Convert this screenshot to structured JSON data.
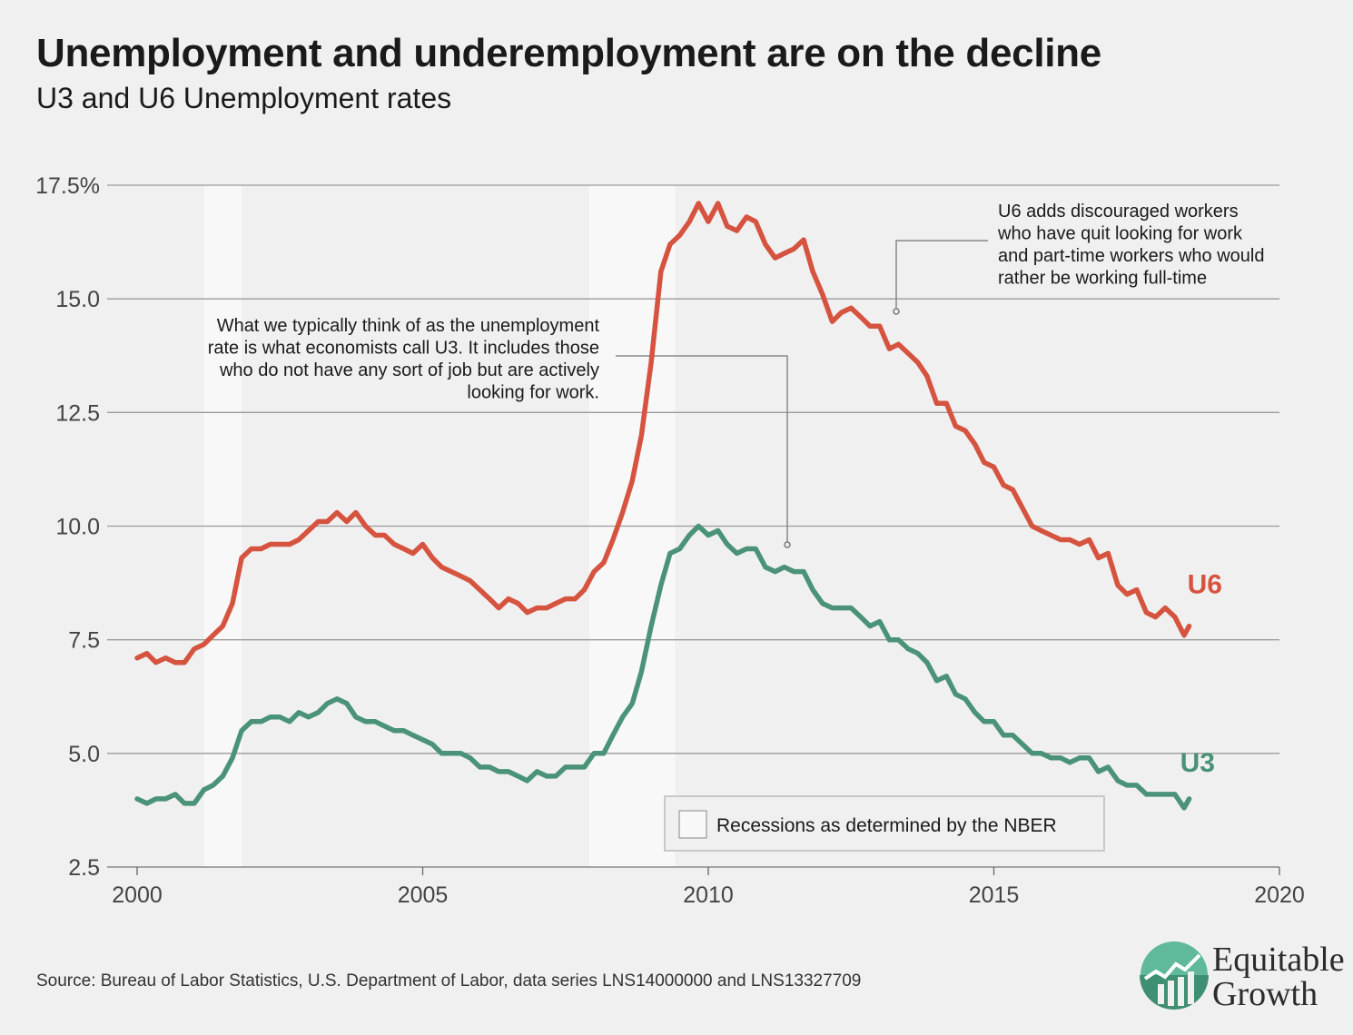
{
  "header": {
    "title": "Unemployment and underemployment are on the decline",
    "subtitle": "U3 and U6 Unemployment rates"
  },
  "footer": {
    "source": "Source: Bureau of Labor Statistics, U.S. Department of Labor, data series LNS14000000 and LNS13327709"
  },
  "logo": {
    "line1": "Equitable",
    "line2": "Growth",
    "icon": "growth-chart-icon"
  },
  "annotations": {
    "u3_note": [
      "What we typically think of as the unemployment",
      "rate is what economists call U3. It includes those",
      "who do not have any sort of job but are actively",
      "looking for work."
    ],
    "u6_note": [
      "U6 adds discouraged workers",
      "who have quit looking for work",
      "and part-time workers who would",
      "rather be working full-time"
    ]
  },
  "legend": {
    "recession_label": "Recessions as determined by the NBER"
  },
  "colors": {
    "u6": "#d5533f",
    "u3": "#4a9378",
    "recession": "#f8f8f8",
    "grid": "#9a9a9a"
  },
  "chart_data": {
    "type": "line",
    "title": "Unemployment and underemployment are on the decline",
    "subtitle": "U3 and U6 Unemployment rates",
    "xlabel": "",
    "ylabel": "",
    "xlim": [
      2000,
      2020
    ],
    "ylim": [
      2.5,
      17.5
    ],
    "x_ticks": [
      "2000",
      "2005",
      "2010",
      "2015",
      "2020"
    ],
    "y_ticks": [
      "17.5%",
      "15.0",
      "12.5",
      "10.0",
      "7.5",
      "5.0",
      "2.5"
    ],
    "y_tick_values": [
      17.5,
      15,
      12.5,
      10,
      7.5,
      5,
      2.5
    ],
    "grid": true,
    "recessions": [
      [
        2001.17,
        2001.83
      ],
      [
        2007.92,
        2009.42
      ]
    ],
    "series": [
      {
        "name": "U6",
        "points": [
          [
            2000.0,
            7.1
          ],
          [
            2000.17,
            7.2
          ],
          [
            2000.33,
            7.0
          ],
          [
            2000.5,
            7.1
          ],
          [
            2000.67,
            7.0
          ],
          [
            2000.83,
            7.0
          ],
          [
            2001.0,
            7.3
          ],
          [
            2001.17,
            7.4
          ],
          [
            2001.33,
            7.6
          ],
          [
            2001.5,
            7.8
          ],
          [
            2001.67,
            8.3
          ],
          [
            2001.83,
            9.3
          ],
          [
            2002.0,
            9.5
          ],
          [
            2002.17,
            9.5
          ],
          [
            2002.33,
            9.6
          ],
          [
            2002.5,
            9.6
          ],
          [
            2002.67,
            9.6
          ],
          [
            2002.83,
            9.7
          ],
          [
            2003.0,
            9.9
          ],
          [
            2003.17,
            10.1
          ],
          [
            2003.33,
            10.1
          ],
          [
            2003.5,
            10.3
          ],
          [
            2003.67,
            10.1
          ],
          [
            2003.83,
            10.3
          ],
          [
            2004.0,
            10.0
          ],
          [
            2004.17,
            9.8
          ],
          [
            2004.33,
            9.8
          ],
          [
            2004.5,
            9.6
          ],
          [
            2004.67,
            9.5
          ],
          [
            2004.83,
            9.4
          ],
          [
            2005.0,
            9.6
          ],
          [
            2005.17,
            9.3
          ],
          [
            2005.33,
            9.1
          ],
          [
            2005.5,
            9.0
          ],
          [
            2005.67,
            8.9
          ],
          [
            2005.83,
            8.8
          ],
          [
            2006.0,
            8.6
          ],
          [
            2006.17,
            8.4
          ],
          [
            2006.33,
            8.2
          ],
          [
            2006.5,
            8.4
          ],
          [
            2006.67,
            8.3
          ],
          [
            2006.83,
            8.1
          ],
          [
            2007.0,
            8.2
          ],
          [
            2007.17,
            8.2
          ],
          [
            2007.33,
            8.3
          ],
          [
            2007.5,
            8.4
          ],
          [
            2007.67,
            8.4
          ],
          [
            2007.83,
            8.6
          ],
          [
            2008.0,
            9.0
          ],
          [
            2008.17,
            9.2
          ],
          [
            2008.33,
            9.7
          ],
          [
            2008.5,
            10.3
          ],
          [
            2008.67,
            11.0
          ],
          [
            2008.83,
            12.0
          ],
          [
            2009.0,
            13.6
          ],
          [
            2009.17,
            15.6
          ],
          [
            2009.33,
            16.2
          ],
          [
            2009.5,
            16.4
          ],
          [
            2009.67,
            16.7
          ],
          [
            2009.83,
            17.1
          ],
          [
            2010.0,
            16.7
          ],
          [
            2010.17,
            17.1
          ],
          [
            2010.33,
            16.6
          ],
          [
            2010.5,
            16.5
          ],
          [
            2010.67,
            16.8
          ],
          [
            2010.83,
            16.7
          ],
          [
            2011.0,
            16.2
          ],
          [
            2011.17,
            15.9
          ],
          [
            2011.33,
            16.0
          ],
          [
            2011.5,
            16.1
          ],
          [
            2011.67,
            16.3
          ],
          [
            2011.83,
            15.6
          ],
          [
            2012.0,
            15.1
          ],
          [
            2012.17,
            14.5
          ],
          [
            2012.33,
            14.7
          ],
          [
            2012.5,
            14.8
          ],
          [
            2012.67,
            14.6
          ],
          [
            2012.83,
            14.4
          ],
          [
            2013.0,
            14.4
          ],
          [
            2013.17,
            13.9
          ],
          [
            2013.33,
            14.0
          ],
          [
            2013.5,
            13.8
          ],
          [
            2013.67,
            13.6
          ],
          [
            2013.83,
            13.3
          ],
          [
            2014.0,
            12.7
          ],
          [
            2014.17,
            12.7
          ],
          [
            2014.33,
            12.2
          ],
          [
            2014.5,
            12.1
          ],
          [
            2014.67,
            11.8
          ],
          [
            2014.83,
            11.4
          ],
          [
            2015.0,
            11.3
          ],
          [
            2015.17,
            10.9
          ],
          [
            2015.33,
            10.8
          ],
          [
            2015.5,
            10.4
          ],
          [
            2015.67,
            10.0
          ],
          [
            2015.83,
            9.9
          ],
          [
            2016.0,
            9.8
          ],
          [
            2016.17,
            9.7
          ],
          [
            2016.33,
            9.7
          ],
          [
            2016.5,
            9.6
          ],
          [
            2016.67,
            9.7
          ],
          [
            2016.83,
            9.3
          ],
          [
            2017.0,
            9.4
          ],
          [
            2017.17,
            8.7
          ],
          [
            2017.33,
            8.5
          ],
          [
            2017.5,
            8.6
          ],
          [
            2017.67,
            8.1
          ],
          [
            2017.83,
            8.0
          ],
          [
            2018.0,
            8.2
          ],
          [
            2018.17,
            8.0
          ],
          [
            2018.33,
            7.6
          ],
          [
            2018.42,
            7.8
          ]
        ]
      },
      {
        "name": "U3",
        "points": [
          [
            2000.0,
            4.0
          ],
          [
            2000.17,
            3.9
          ],
          [
            2000.33,
            4.0
          ],
          [
            2000.5,
            4.0
          ],
          [
            2000.67,
            4.1
          ],
          [
            2000.83,
            3.9
          ],
          [
            2001.0,
            3.9
          ],
          [
            2001.17,
            4.2
          ],
          [
            2001.33,
            4.3
          ],
          [
            2001.5,
            4.5
          ],
          [
            2001.67,
            4.9
          ],
          [
            2001.83,
            5.5
          ],
          [
            2002.0,
            5.7
          ],
          [
            2002.17,
            5.7
          ],
          [
            2002.33,
            5.8
          ],
          [
            2002.5,
            5.8
          ],
          [
            2002.67,
            5.7
          ],
          [
            2002.83,
            5.9
          ],
          [
            2003.0,
            5.8
          ],
          [
            2003.17,
            5.9
          ],
          [
            2003.33,
            6.1
          ],
          [
            2003.5,
            6.2
          ],
          [
            2003.67,
            6.1
          ],
          [
            2003.83,
            5.8
          ],
          [
            2004.0,
            5.7
          ],
          [
            2004.17,
            5.7
          ],
          [
            2004.33,
            5.6
          ],
          [
            2004.5,
            5.5
          ],
          [
            2004.67,
            5.5
          ],
          [
            2004.83,
            5.4
          ],
          [
            2005.0,
            5.3
          ],
          [
            2005.17,
            5.2
          ],
          [
            2005.33,
            5.0
          ],
          [
            2005.5,
            5.0
          ],
          [
            2005.67,
            5.0
          ],
          [
            2005.83,
            4.9
          ],
          [
            2006.0,
            4.7
          ],
          [
            2006.17,
            4.7
          ],
          [
            2006.33,
            4.6
          ],
          [
            2006.5,
            4.6
          ],
          [
            2006.67,
            4.5
          ],
          [
            2006.83,
            4.4
          ],
          [
            2007.0,
            4.6
          ],
          [
            2007.17,
            4.5
          ],
          [
            2007.33,
            4.5
          ],
          [
            2007.5,
            4.7
          ],
          [
            2007.67,
            4.7
          ],
          [
            2007.83,
            4.7
          ],
          [
            2008.0,
            5.0
          ],
          [
            2008.17,
            5.0
          ],
          [
            2008.33,
            5.4
          ],
          [
            2008.5,
            5.8
          ],
          [
            2008.67,
            6.1
          ],
          [
            2008.83,
            6.8
          ],
          [
            2009.0,
            7.8
          ],
          [
            2009.17,
            8.7
          ],
          [
            2009.33,
            9.4
          ],
          [
            2009.5,
            9.5
          ],
          [
            2009.67,
            9.8
          ],
          [
            2009.83,
            10.0
          ],
          [
            2010.0,
            9.8
          ],
          [
            2010.17,
            9.9
          ],
          [
            2010.33,
            9.6
          ],
          [
            2010.5,
            9.4
          ],
          [
            2010.67,
            9.5
          ],
          [
            2010.83,
            9.5
          ],
          [
            2011.0,
            9.1
          ],
          [
            2011.17,
            9.0
          ],
          [
            2011.33,
            9.1
          ],
          [
            2011.5,
            9.0
          ],
          [
            2011.67,
            9.0
          ],
          [
            2011.83,
            8.6
          ],
          [
            2012.0,
            8.3
          ],
          [
            2012.17,
            8.2
          ],
          [
            2012.33,
            8.2
          ],
          [
            2012.5,
            8.2
          ],
          [
            2012.67,
            8.0
          ],
          [
            2012.83,
            7.8
          ],
          [
            2013.0,
            7.9
          ],
          [
            2013.17,
            7.5
          ],
          [
            2013.33,
            7.5
          ],
          [
            2013.5,
            7.3
          ],
          [
            2013.67,
            7.2
          ],
          [
            2013.83,
            7.0
          ],
          [
            2014.0,
            6.6
          ],
          [
            2014.17,
            6.7
          ],
          [
            2014.33,
            6.3
          ],
          [
            2014.5,
            6.2
          ],
          [
            2014.67,
            5.9
          ],
          [
            2014.83,
            5.7
          ],
          [
            2015.0,
            5.7
          ],
          [
            2015.17,
            5.4
          ],
          [
            2015.33,
            5.4
          ],
          [
            2015.5,
            5.2
          ],
          [
            2015.67,
            5.0
          ],
          [
            2015.83,
            5.0
          ],
          [
            2016.0,
            4.9
          ],
          [
            2016.17,
            4.9
          ],
          [
            2016.33,
            4.8
          ],
          [
            2016.5,
            4.9
          ],
          [
            2016.67,
            4.9
          ],
          [
            2016.83,
            4.6
          ],
          [
            2017.0,
            4.7
          ],
          [
            2017.17,
            4.4
          ],
          [
            2017.33,
            4.3
          ],
          [
            2017.5,
            4.3
          ],
          [
            2017.67,
            4.1
          ],
          [
            2017.83,
            4.1
          ],
          [
            2018.0,
            4.1
          ],
          [
            2018.17,
            4.1
          ],
          [
            2018.33,
            3.8
          ],
          [
            2018.42,
            4.0
          ]
        ]
      }
    ],
    "series_labels": [
      "U6",
      "U3"
    ],
    "legend_position": "bottom-center"
  }
}
